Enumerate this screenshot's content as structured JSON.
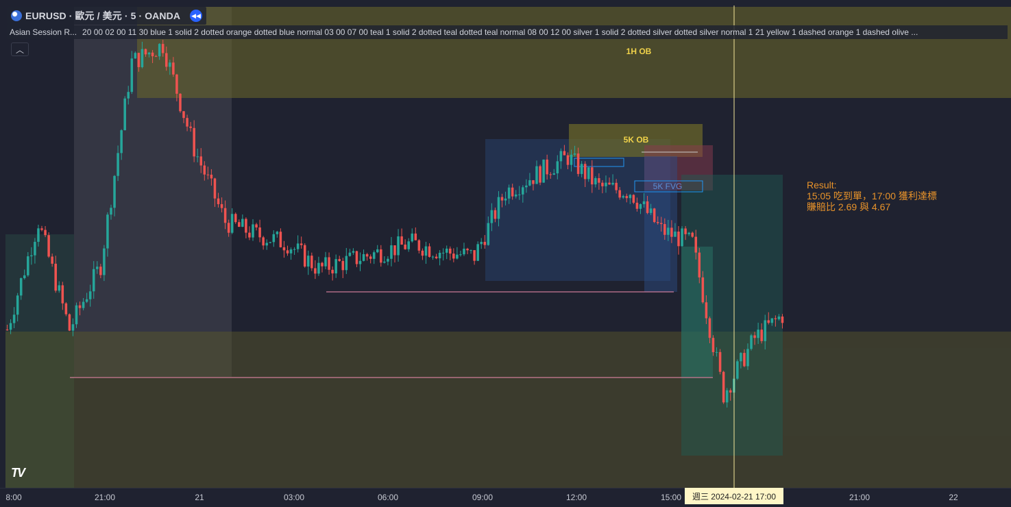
{
  "header": {
    "symbol_title": "EURUSD · 歐元 / 美元 · 5 · OANDA"
  },
  "indicator": {
    "name": "Asian Session R...",
    "params": "20 00 02 00 11 30 blue 1 solid 2 dotted orange dotted blue normal 03 00 07 00 teal 1 solid 2 dotted teal dotted teal normal 08 00 12 00 silver 1 solid 2 dotted silver dotted silver normal 1 21 yellow 1 dashed orange 1 dashed olive ..."
  },
  "labels": {
    "ob_1h": "1H OB",
    "ob_5k": "5K OB",
    "fvg_5k": "5K FVG"
  },
  "result": {
    "line1": "Result:",
    "line2": "15:05 吃到單，17:00 獲利達標",
    "line3": "賺賠比 2.69 與 4.67"
  },
  "time_axis": {
    "ticks": [
      "8:00",
      "21:00",
      "21",
      "03:00",
      "06:00",
      "09:00",
      "12:00",
      "15:00",
      "21:00",
      "22"
    ],
    "crosshair": "週三 2024-02-21   17:00"
  },
  "colors": {
    "background": "#1f2230",
    "up_candle": "#26a69a",
    "down_candle": "#ef5350",
    "crosshair": "#f5e89a",
    "result_text": "#e8932a"
  },
  "chart_data": {
    "type": "candlestick",
    "symbol": "EURUSD",
    "timeframe": "5",
    "x_ticks": [
      "8:00",
      "21:00",
      "21",
      "03:00",
      "06:00",
      "09:00",
      "12:00",
      "15:00",
      "21:00",
      "22"
    ],
    "close_trajectory": [
      {
        "t": "18:00",
        "c": 0.3
      },
      {
        "t": "19:00",
        "c": 0.55
      },
      {
        "t": "20:00",
        "c": 0.3
      },
      {
        "t": "21:00",
        "c": 0.45
      },
      {
        "t": "22:00",
        "c": 0.92
      },
      {
        "t": "23:00",
        "c": 0.96
      },
      {
        "t": "00:00",
        "c": 0.72
      },
      {
        "t": "01:00",
        "c": 0.55
      },
      {
        "t": "02:00",
        "c": 0.52
      },
      {
        "t": "03:00",
        "c": 0.5
      },
      {
        "t": "04:00",
        "c": 0.44
      },
      {
        "t": "05:00",
        "c": 0.46
      },
      {
        "t": "06:00",
        "c": 0.48
      },
      {
        "t": "07:00",
        "c": 0.5
      },
      {
        "t": "08:00",
        "c": 0.48
      },
      {
        "t": "09:00",
        "c": 0.47
      },
      {
        "t": "10:00",
        "c": 0.62
      },
      {
        "t": "11:00",
        "c": 0.66
      },
      {
        "t": "12:00",
        "c": 0.7
      },
      {
        "t": "13:00",
        "c": 0.63
      },
      {
        "t": "14:00",
        "c": 0.62
      },
      {
        "t": "15:00",
        "c": 0.53
      },
      {
        "t": "16:00",
        "c": 0.5
      },
      {
        "t": "17:00",
        "c": 0.15
      },
      {
        "t": "18:00",
        "c": 0.28
      },
      {
        "t": "19:00",
        "c": 0.34
      }
    ]
  }
}
